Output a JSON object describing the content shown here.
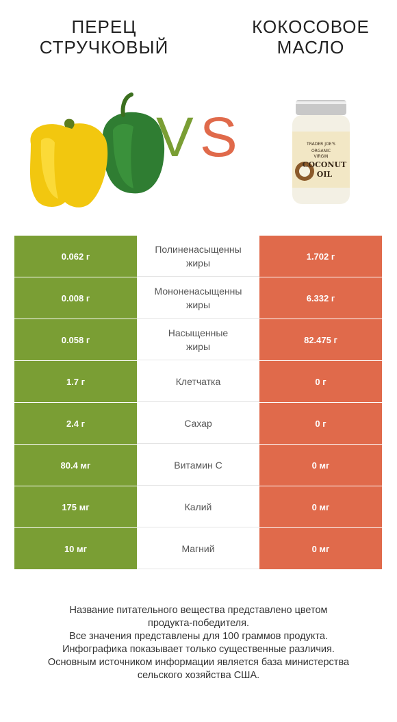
{
  "titles": {
    "left_line1": "ПЕРЕЦ",
    "left_line2": "СТРУЧКОВЫЙ",
    "right_line1": "КОКОСОВОЕ",
    "right_line2": "МАСЛО"
  },
  "vs": {
    "v": "V",
    "s": "S"
  },
  "jar_label": {
    "brand": "TRADER JOE'S",
    "line1": "ORGANIC",
    "line2": "VIRGIN",
    "line3": "COCONUT",
    "line4": "OIL"
  },
  "colors": {
    "winner_left": "#7a9e34",
    "winner_right": "#e06a4b"
  },
  "rows": [
    {
      "left": "0.062 г",
      "name1": "Полиненасыщенны",
      "name2": "жиры",
      "right": "1.702 г",
      "winner": "right"
    },
    {
      "left": "0.008 г",
      "name1": "Мононенасыщенны",
      "name2": "жиры",
      "right": "6.332 г",
      "winner": "right"
    },
    {
      "left": "0.058 г",
      "name1": "Насыщенные",
      "name2": "жиры",
      "right": "82.475 г",
      "winner": "left"
    },
    {
      "left": "1.7 г",
      "name1": "Клетчатка",
      "name2": "",
      "right": "0 г",
      "winner": "left"
    },
    {
      "left": "2.4 г",
      "name1": "Сахар",
      "name2": "",
      "right": "0 г",
      "winner": "right"
    },
    {
      "left": "80.4 мг",
      "name1": "Витамин C",
      "name2": "",
      "right": "0 мг",
      "winner": "left"
    },
    {
      "left": "175 мг",
      "name1": "Калий",
      "name2": "",
      "right": "0 мг",
      "winner": "left"
    },
    {
      "left": "10 мг",
      "name1": "Магний",
      "name2": "",
      "right": "0 мг",
      "winner": "left"
    }
  ],
  "footer": [
    "Название питательного вещества представлено цветом",
    "продукта-победителя.",
    "Все значения представлены для 100 граммов продукта.",
    "Инфографика показывает только существенные различия.",
    "Основным источником информации является база министерства",
    "сельского хозяйства США."
  ]
}
